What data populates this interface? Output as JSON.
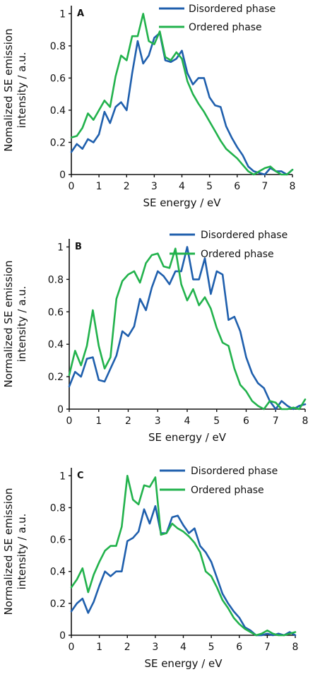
{
  "colors": {
    "disordered": "#1f5fad",
    "ordered": "#22b24c"
  },
  "chart_data": [
    {
      "type": "line",
      "panel_label": "A",
      "xlabel": "SE energy / eV",
      "ylabel": [
        "Nomalized SE emission",
        "intensity / a.u."
      ],
      "xlim": [
        0,
        8
      ],
      "ylim": [
        0,
        1.05
      ],
      "xticks": [
        0,
        1,
        2,
        3,
        4,
        5,
        6,
        7,
        8
      ],
      "yticks": [
        0,
        0.2,
        0.4,
        0.6,
        0.8,
        1
      ],
      "series": [
        {
          "name": "Disordered phase",
          "color": "#1f5fad",
          "x": [
            0,
            0.2,
            0.4,
            0.6,
            0.8,
            1.0,
            1.2,
            1.4,
            1.6,
            1.8,
            2.0,
            2.2,
            2.4,
            2.6,
            2.8,
            3.0,
            3.2,
            3.4,
            3.6,
            3.8,
            4.0,
            4.2,
            4.4,
            4.6,
            4.8,
            5.0,
            5.2,
            5.4,
            5.6,
            5.8,
            6.0,
            6.2,
            6.4,
            6.6,
            6.8,
            7.0,
            7.2,
            7.4,
            7.6,
            7.8,
            8.0
          ],
          "y": [
            0.14,
            0.19,
            0.16,
            0.22,
            0.2,
            0.25,
            0.39,
            0.32,
            0.42,
            0.45,
            0.4,
            0.63,
            0.83,
            0.69,
            0.74,
            0.85,
            0.88,
            0.71,
            0.7,
            0.72,
            0.77,
            0.63,
            0.56,
            0.6,
            0.6,
            0.48,
            0.43,
            0.42,
            0.3,
            0.23,
            0.17,
            0.12,
            0.05,
            0.02,
            0.01,
            0.0,
            0.04,
            0.02,
            0.02,
            0.0,
            0.03
          ]
        },
        {
          "name": "Ordered phase",
          "color": "#22b24c",
          "x": [
            0,
            0.2,
            0.4,
            0.6,
            0.8,
            1.0,
            1.2,
            1.4,
            1.6,
            1.8,
            2.0,
            2.2,
            2.4,
            2.6,
            2.8,
            3.0,
            3.2,
            3.4,
            3.6,
            3.8,
            4.0,
            4.2,
            4.4,
            4.6,
            4.8,
            5.0,
            5.2,
            5.4,
            5.6,
            5.8,
            6.0,
            6.2,
            6.4,
            6.6,
            6.8,
            7.0,
            7.2,
            7.4,
            7.6,
            7.8,
            8.0
          ],
          "y": [
            0.23,
            0.24,
            0.29,
            0.38,
            0.34,
            0.4,
            0.46,
            0.42,
            0.61,
            0.74,
            0.71,
            0.86,
            0.86,
            1.0,
            0.83,
            0.81,
            0.89,
            0.73,
            0.71,
            0.76,
            0.72,
            0.58,
            0.5,
            0.44,
            0.39,
            0.33,
            0.27,
            0.21,
            0.16,
            0.13,
            0.1,
            0.06,
            0.02,
            0.0,
            0.02,
            0.04,
            0.05,
            0.02,
            0.0,
            0.0,
            0.03
          ]
        }
      ]
    },
    {
      "type": "line",
      "panel_label": "B",
      "xlabel": "SE energy / eV",
      "ylabel": [
        "Normalized SE emission",
        "intensity / a.u."
      ],
      "xlim": [
        0,
        8
      ],
      "ylim": [
        0,
        1.05
      ],
      "xticks": [
        0,
        1,
        2,
        3,
        4,
        5,
        6,
        7,
        8
      ],
      "yticks": [
        0,
        0.2,
        0.4,
        0.6,
        0.8,
        1
      ],
      "series": [
        {
          "name": "Disordered phase",
          "color": "#1f5fad",
          "x": [
            0,
            0.2,
            0.4,
            0.6,
            0.8,
            1.0,
            1.2,
            1.4,
            1.6,
            1.8,
            2.0,
            2.2,
            2.4,
            2.6,
            2.8,
            3.0,
            3.2,
            3.4,
            3.6,
            3.8,
            4.0,
            4.2,
            4.4,
            4.6,
            4.8,
            5.0,
            5.2,
            5.4,
            5.6,
            5.8,
            6.0,
            6.2,
            6.4,
            6.6,
            6.8,
            7.0,
            7.2,
            7.4,
            7.6,
            7.8,
            8.0
          ],
          "y": [
            0.14,
            0.23,
            0.2,
            0.31,
            0.32,
            0.18,
            0.17,
            0.25,
            0.33,
            0.48,
            0.45,
            0.51,
            0.68,
            0.61,
            0.75,
            0.85,
            0.82,
            0.77,
            0.85,
            0.85,
            1.0,
            0.8,
            0.8,
            0.93,
            0.71,
            0.85,
            0.83,
            0.55,
            0.57,
            0.48,
            0.32,
            0.22,
            0.16,
            0.13,
            0.05,
            0.0,
            0.05,
            0.02,
            0.0,
            0.02,
            0.03
          ]
        },
        {
          "name": "Ordered phase",
          "color": "#22b24c",
          "x": [
            0,
            0.2,
            0.4,
            0.6,
            0.8,
            1.0,
            1.2,
            1.4,
            1.6,
            1.8,
            2.0,
            2.2,
            2.4,
            2.6,
            2.8,
            3.0,
            3.2,
            3.4,
            3.6,
            3.8,
            4.0,
            4.2,
            4.4,
            4.6,
            4.8,
            5.0,
            5.2,
            5.4,
            5.6,
            5.8,
            6.0,
            6.2,
            6.4,
            6.6,
            6.8,
            7.0,
            7.2,
            7.4,
            7.6,
            7.8,
            8.0
          ],
          "y": [
            0.21,
            0.36,
            0.27,
            0.39,
            0.61,
            0.39,
            0.25,
            0.32,
            0.68,
            0.79,
            0.83,
            0.85,
            0.78,
            0.9,
            0.95,
            0.96,
            0.88,
            0.87,
            0.99,
            0.77,
            0.67,
            0.74,
            0.64,
            0.69,
            0.62,
            0.5,
            0.41,
            0.39,
            0.25,
            0.15,
            0.11,
            0.05,
            0.02,
            0.0,
            0.05,
            0.04,
            0.0,
            0.0,
            0.01,
            0.0,
            0.06
          ]
        }
      ]
    },
    {
      "type": "line",
      "panel_label": "C",
      "xlabel": "SE energy / eV",
      "ylabel": [
        "Normalized SE emission",
        "intensity / a.u."
      ],
      "xlim": [
        0,
        8
      ],
      "ylim": [
        0,
        1.05
      ],
      "xticks": [
        0,
        1,
        2,
        3,
        4,
        5,
        6,
        7,
        8
      ],
      "yticks": [
        0,
        0.2,
        0.4,
        0.6,
        0.8,
        1
      ],
      "series": [
        {
          "name": "Disordered phase",
          "color": "#1f5fad",
          "x": [
            0,
            0.2,
            0.4,
            0.6,
            0.8,
            1.0,
            1.2,
            1.4,
            1.6,
            1.8,
            2.0,
            2.2,
            2.4,
            2.6,
            2.8,
            3.0,
            3.2,
            3.4,
            3.6,
            3.8,
            4.0,
            4.2,
            4.4,
            4.6,
            4.8,
            5.0,
            5.2,
            5.4,
            5.6,
            5.8,
            6.0,
            6.2,
            6.4,
            6.6,
            6.8,
            7.0,
            7.2,
            7.4,
            7.6,
            7.8,
            8.0
          ],
          "y": [
            0.15,
            0.2,
            0.23,
            0.14,
            0.21,
            0.31,
            0.4,
            0.37,
            0.4,
            0.4,
            0.59,
            0.61,
            0.65,
            0.79,
            0.7,
            0.81,
            0.64,
            0.64,
            0.74,
            0.75,
            0.69,
            0.64,
            0.67,
            0.56,
            0.52,
            0.46,
            0.36,
            0.26,
            0.2,
            0.15,
            0.11,
            0.05,
            0.03,
            0.0,
            0.0,
            0.01,
            0.0,
            0.01,
            0.0,
            0.02,
            0.0
          ]
        },
        {
          "name": "Ordered phase",
          "color": "#22b24c",
          "x": [
            0,
            0.2,
            0.4,
            0.6,
            0.8,
            1.0,
            1.2,
            1.4,
            1.6,
            1.8,
            2.0,
            2.2,
            2.4,
            2.6,
            2.8,
            3.0,
            3.2,
            3.4,
            3.6,
            3.8,
            4.0,
            4.2,
            4.4,
            4.6,
            4.8,
            5.0,
            5.2,
            5.4,
            5.6,
            5.8,
            6.0,
            6.2,
            6.4,
            6.6,
            6.8,
            7.0,
            7.2,
            7.4,
            7.6,
            7.8,
            8.0
          ],
          "y": [
            0.3,
            0.35,
            0.42,
            0.27,
            0.38,
            0.46,
            0.53,
            0.56,
            0.56,
            0.68,
            1.0,
            0.85,
            0.82,
            0.94,
            0.93,
            0.99,
            0.63,
            0.64,
            0.7,
            0.67,
            0.65,
            0.62,
            0.58,
            0.52,
            0.4,
            0.37,
            0.3,
            0.22,
            0.17,
            0.11,
            0.07,
            0.04,
            0.02,
            0.0,
            0.01,
            0.03,
            0.01,
            0.0,
            0.0,
            0.01,
            0.02
          ]
        }
      ]
    }
  ]
}
